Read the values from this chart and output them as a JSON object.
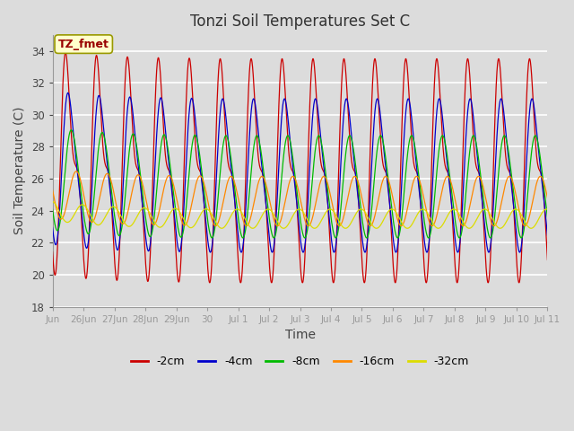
{
  "title": "Tonzi Soil Temperatures Set C",
  "xlabel": "Time",
  "ylabel": "Soil Temperature (C)",
  "ylim": [
    18,
    35
  ],
  "yticks": [
    18,
    20,
    22,
    24,
    26,
    28,
    30,
    32,
    34
  ],
  "series": [
    {
      "label": "-2cm",
      "color": "#cc0000",
      "mean": 26.5,
      "amp": 7.0,
      "phase": 0.25,
      "sharpness": 0.45,
      "phase_delay_per_day": 0.0
    },
    {
      "label": "-4cm",
      "color": "#0000cc",
      "mean": 26.2,
      "amp": 4.8,
      "phase": 0.3,
      "sharpness": 0.2,
      "phase_delay_per_day": 0.0
    },
    {
      "label": "-8cm",
      "color": "#00bb00",
      "mean": 25.5,
      "amp": 3.2,
      "phase": 0.38,
      "sharpness": 0.08,
      "phase_delay_per_day": 0.0
    },
    {
      "label": "-16cm",
      "color": "#ff8800",
      "mean": 24.6,
      "amp": 1.55,
      "phase": 0.52,
      "sharpness": 0.0,
      "phase_delay_per_day": 0.0
    },
    {
      "label": "-32cm",
      "color": "#dddd00",
      "mean": 23.5,
      "amp": 0.6,
      "phase": 0.72,
      "sharpness": 0.0,
      "phase_delay_per_day": 0.0
    }
  ],
  "annotation_label": "TZ_fmet",
  "bg_color": "#dcdcdc",
  "plot_bg_color": "#dcdcdc",
  "grid_color": "#ffffff",
  "figsize": [
    6.4,
    4.8
  ],
  "dpi": 100,
  "x_start": 0,
  "x_end": 16,
  "x_tick_positions": [
    0,
    1,
    2,
    3,
    4,
    5,
    6,
    7,
    8,
    9,
    10,
    11,
    12,
    13,
    14,
    15,
    16
  ],
  "x_tick_labels": [
    "Jun",
    "26Jun",
    "27Jun",
    "28Jun",
    "29Jun",
    "30",
    "Jul 1",
    "Jul 2",
    "Jul 3",
    "Jul 4",
    "Jul 5",
    "Jul 6",
    "Jul 7",
    "Jul 8",
    "Jul 9",
    "Jul 10",
    "Jul 11"
  ]
}
